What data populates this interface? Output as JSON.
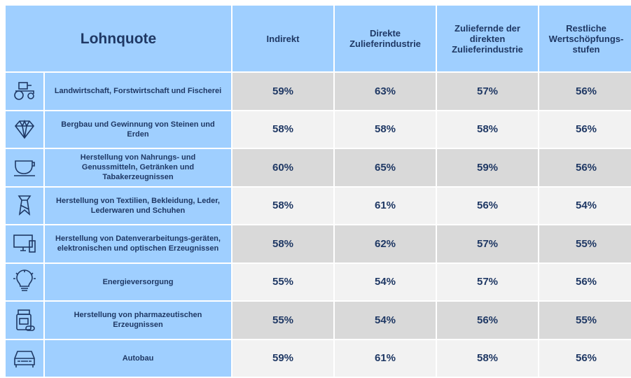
{
  "table": {
    "title": "Lohnquote",
    "columns": [
      "Indirekt",
      "Direkte Zulieferindustrie",
      "Zuliefernde der direkten Zulieferindustrie",
      "Restliche Wertschöpfungs-stufen"
    ],
    "rows": [
      {
        "label": "Landwirtschaft, Forstwirtschaft und Fischerei",
        "values": [
          "59%",
          "63%",
          "57%",
          "56%"
        ]
      },
      {
        "label": "Bergbau und Gewinnung von Steinen und Erden",
        "values": [
          "58%",
          "58%",
          "58%",
          "56%"
        ]
      },
      {
        "label": "Herstellung von Nahrungs- und Genussmitteln, Getränken und Tabakerzeugnissen",
        "values": [
          "60%",
          "65%",
          "59%",
          "56%"
        ]
      },
      {
        "label": "Herstellung von Textilien, Bekleidung, Leder, Lederwaren und Schuhen",
        "values": [
          "58%",
          "61%",
          "56%",
          "54%"
        ]
      },
      {
        "label": "Herstellung von Datenverarbeitungs-geräten, elektronischen und optischen Erzeugnissen",
        "values": [
          "58%",
          "62%",
          "57%",
          "55%"
        ]
      },
      {
        "label": "Energieversorgung",
        "values": [
          "55%",
          "54%",
          "57%",
          "56%"
        ]
      },
      {
        "label": "Herstellung von pharmazeutischen Erzeugnissen",
        "values": [
          "55%",
          "54%",
          "56%",
          "55%"
        ]
      },
      {
        "label": "Autobau",
        "values": [
          "59%",
          "61%",
          "58%",
          "56%"
        ]
      }
    ]
  }
}
